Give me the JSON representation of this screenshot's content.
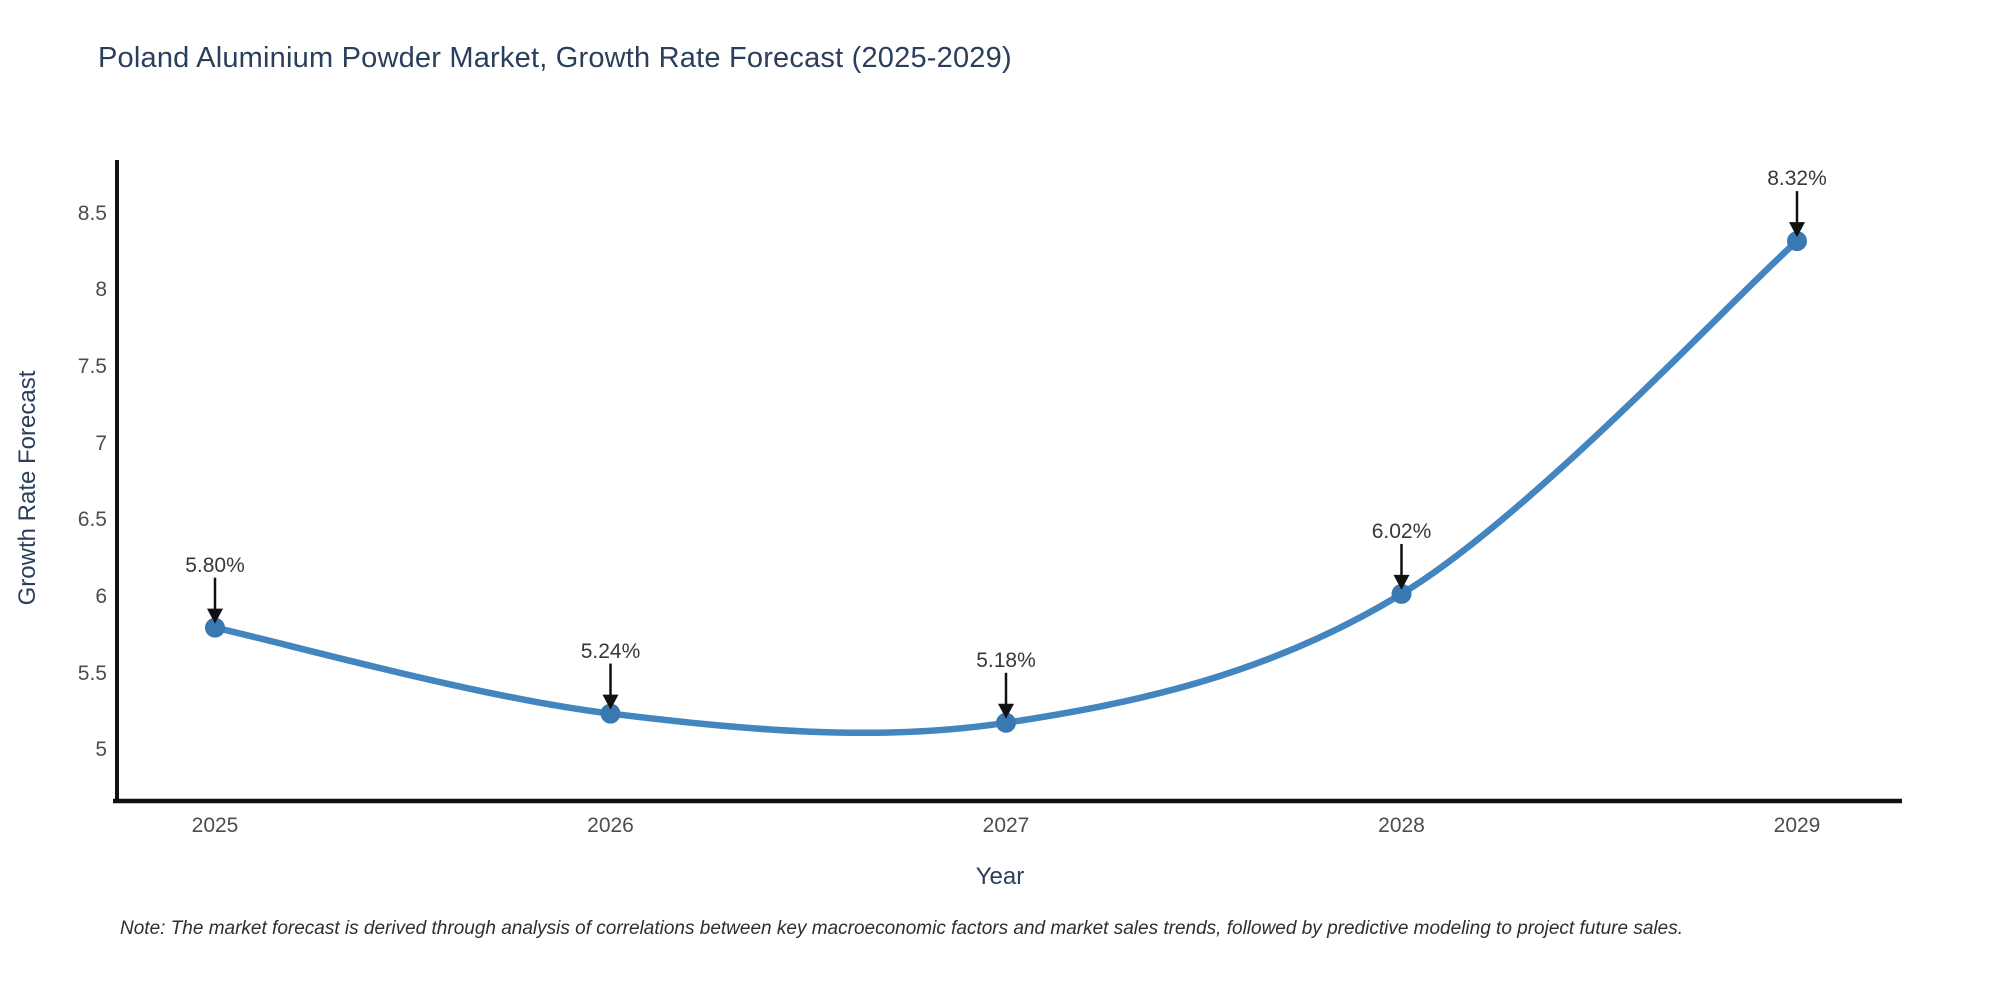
{
  "title": "Poland Aluminium Powder Market, Growth Rate Forecast (2025-2029)",
  "note": "Note: The market forecast is derived through analysis of correlations between key macroeconomic factors and market sales trends, followed by predictive modeling to project future sales.",
  "colors": {
    "background": "#ffffff",
    "line": "#4285bf",
    "marker": "#3a78b2",
    "axis": "#111111",
    "arrow": "#111111",
    "title_text": "#2b3f5c",
    "axis_title_text": "#2b3f5c",
    "tick_text": "#4d4d4d",
    "annotation_text": "#383838"
  },
  "chart_data": {
    "type": "line",
    "title": "Poland Aluminium Powder Market, Growth Rate Forecast (2025-2029)",
    "xlabel": "Year",
    "ylabel": "Growth Rate Forecast",
    "x": [
      2025,
      2026,
      2027,
      2028,
      2029
    ],
    "series": [
      {
        "name": "Growth Rate Forecast",
        "values": [
          5.8,
          5.24,
          5.18,
          6.02,
          8.32
        ],
        "point_labels": [
          "5.80%",
          "5.24%",
          "5.18%",
          "6.02%",
          "8.32%"
        ]
      }
    ],
    "x_tick_labels": [
      "2025",
      "2026",
      "2027",
      "2028",
      "2029"
    ],
    "y_ticks": [
      5,
      5.5,
      6,
      6.5,
      7,
      7.5,
      8,
      8.5
    ],
    "ylim": [
      4.67,
      8.85
    ],
    "line_shape": "spline",
    "markers": true,
    "grid": false,
    "legend_position": "none",
    "annotations": "arrow-down-to-point"
  }
}
